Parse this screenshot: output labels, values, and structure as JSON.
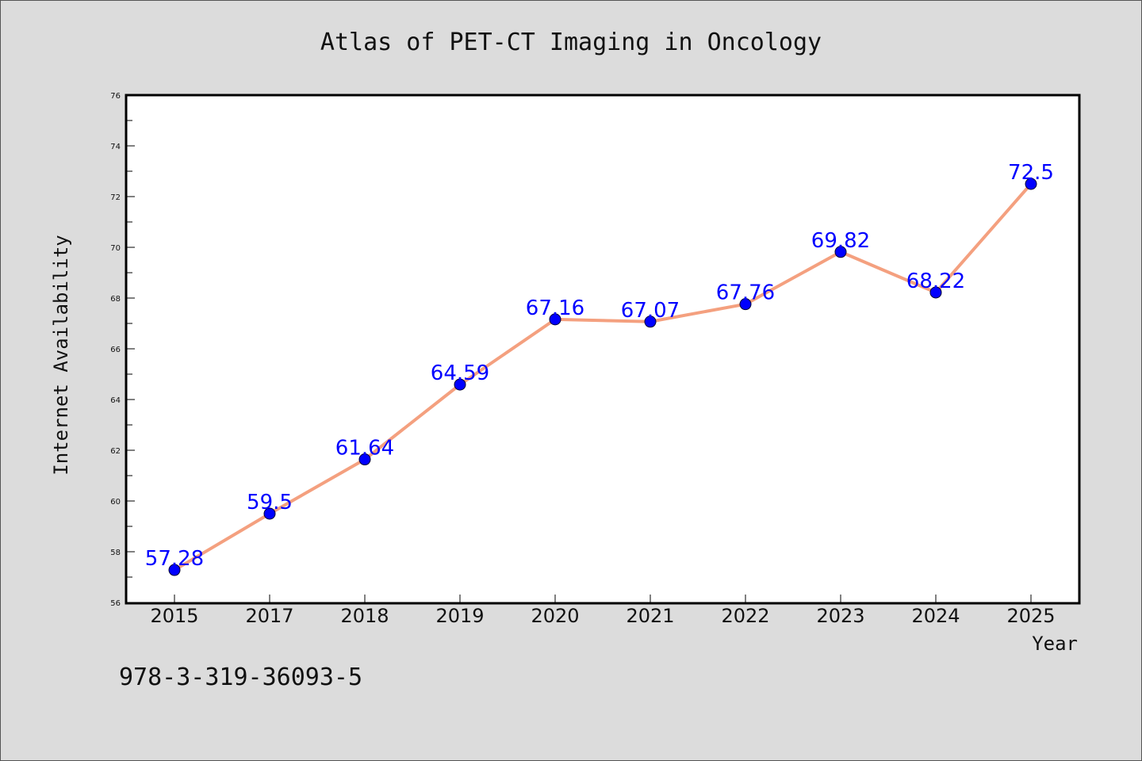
{
  "figure": {
    "title": "Atlas of PET-CT Imaging in Oncology",
    "footer_text": "978-3-319-36093-5"
  },
  "chart_data": {
    "type": "line",
    "title": "Atlas of PET-CT Imaging in Oncology",
    "xlabel": "Year",
    "ylabel": "Internet Availability",
    "categories": [
      "2015",
      "2017",
      "2018",
      "2019",
      "2020",
      "2021",
      "2022",
      "2023",
      "2024",
      "2025"
    ],
    "series": [
      {
        "values": [
          57.28,
          59.5,
          61.64,
          64.59,
          67.16,
          67.07,
          67.76,
          69.82,
          68.22,
          72.5
        ],
        "labels": [
          "57.28",
          "59.5",
          "61.64",
          "64.59",
          "67.16",
          "67.07",
          "67.76",
          "69.82",
          "68.22",
          "72.5"
        ]
      }
    ],
    "ylim": [
      56,
      76
    ],
    "yticks": [
      56,
      58,
      60,
      62,
      64,
      66,
      68,
      70,
      72,
      74,
      76
    ],
    "grid": false,
    "legend": "none",
    "colors": {
      "line": "#f4a07f",
      "marker": "#0000ff",
      "data_label": "#0000ff",
      "plot_background": "#ffffff",
      "figure_background": "#dcdcdc"
    }
  }
}
